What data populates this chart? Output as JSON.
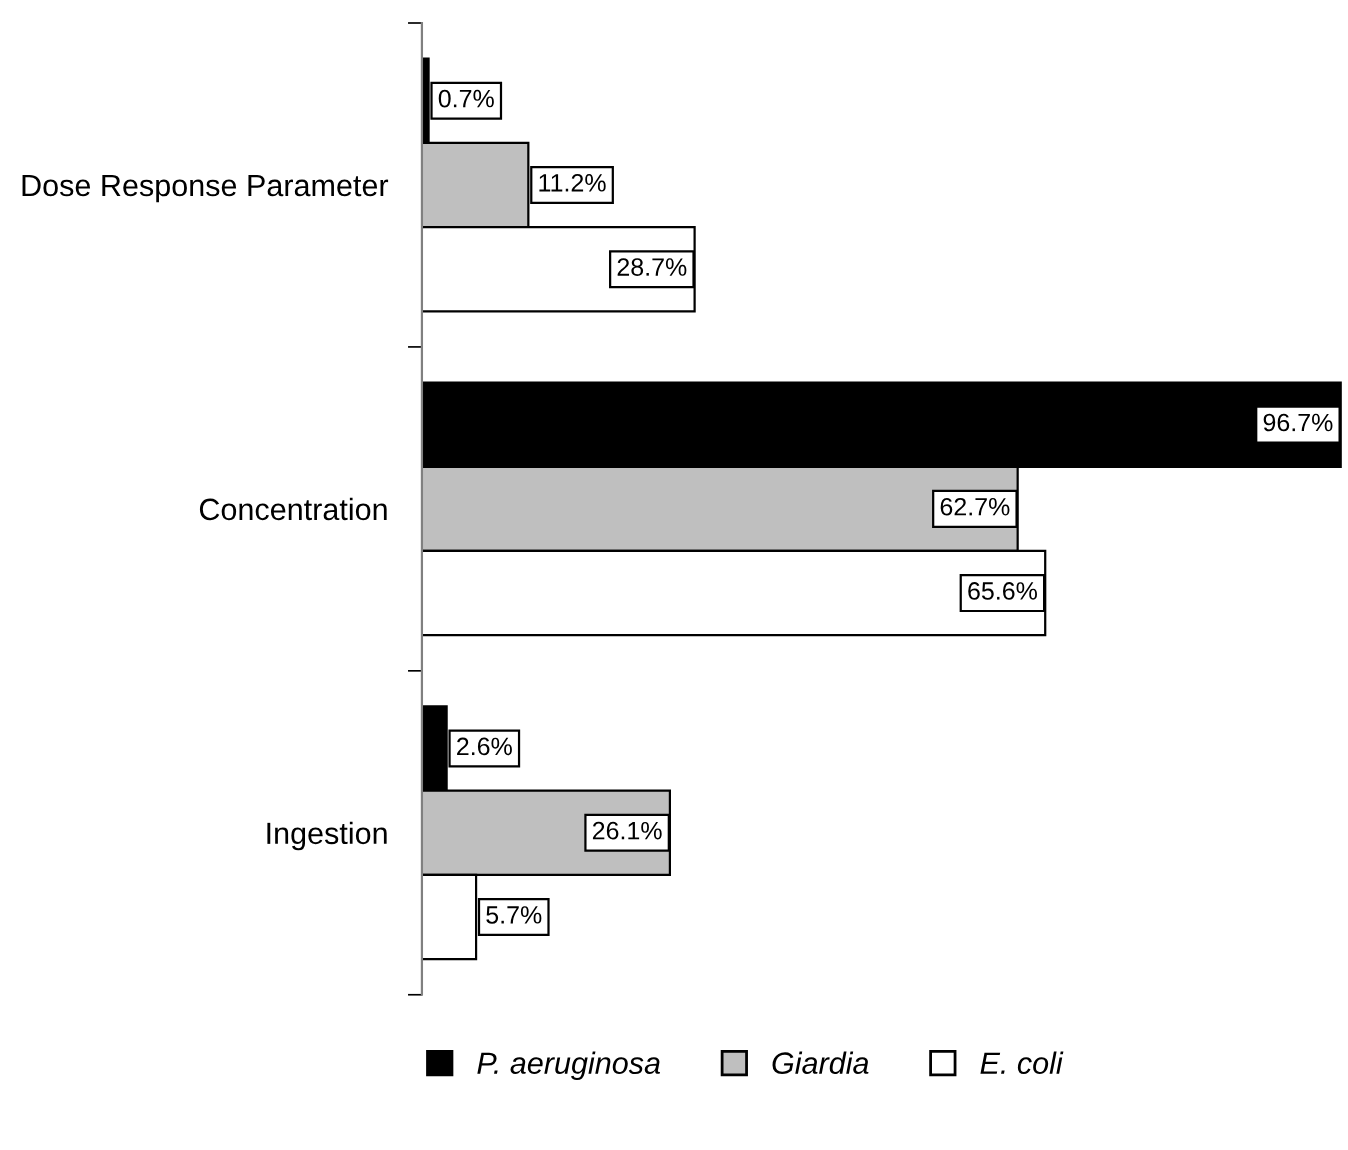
{
  "chart_data": {
    "type": "bar",
    "orientation": "horizontal",
    "categories": [
      "Dose Response Parameter",
      "Concentration",
      "Ingestion"
    ],
    "series": [
      {
        "name": "P. aeruginosa",
        "color": "#000000",
        "values": [
          0.7,
          96.7,
          2.6
        ],
        "value_labels": [
          "0.7%",
          "96.7%",
          "2.6%"
        ]
      },
      {
        "name": "Giardia",
        "color": "#bfbfbf",
        "values": [
          11.2,
          62.7,
          26.1
        ],
        "value_labels": [
          "11.2%",
          "62.7%",
          "26.1%"
        ]
      },
      {
        "name": "E. coli",
        "color": "#ffffff",
        "values": [
          28.7,
          65.6,
          5.7
        ],
        "value_labels": [
          "28.7%",
          "65.6%",
          "5.7%"
        ]
      }
    ],
    "legend": "bottom",
    "grid": false
  }
}
